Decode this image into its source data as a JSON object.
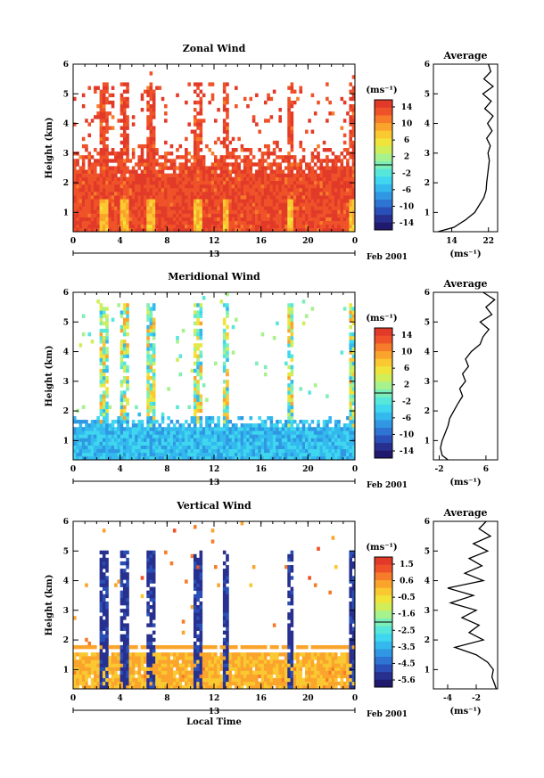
{
  "date_label": "Feb 2001",
  "local_time_label": "Local Time",
  "colors": {
    "palette": [
      "#1f1a6e",
      "#27308f",
      "#2a4fb6",
      "#2e74d2",
      "#2f97e3",
      "#33b9ee",
      "#3fd6ef",
      "#57e6da",
      "#7cefb8",
      "#a6f28c",
      "#cfee5a",
      "#f0e43a",
      "#fac830",
      "#fba42c",
      "#f77c2a",
      "#ef5228",
      "#e23a28"
    ]
  },
  "chart_data": [
    {
      "type": "heatmap",
      "title": "Zonal Wind",
      "ylabel": "Height (km)",
      "x": [
        0,
        24
      ],
      "x_ticks": [
        "0",
        "4",
        "8",
        "12",
        "16",
        "20",
        "0"
      ],
      "y": [
        0.35,
        6
      ],
      "y_ticks": [
        "1",
        "2",
        "3",
        "4",
        "5",
        "6"
      ],
      "day_label": "13",
      "colorbar_unit": "(ms⁻¹)",
      "colorbar_range": [
        -16,
        16
      ],
      "colorbar_ticks": [
        "14",
        "10",
        "6",
        "2",
        "-2",
        "-6",
        "-10",
        "-14"
      ],
      "field_note": "mostly strong positive values (red) up to ~2 km with patchy returns above",
      "profile": {
        "title": "Average",
        "x_ticks": [
          "14",
          "22"
        ],
        "xlim": [
          10,
          24
        ],
        "xlabel": "(ms⁻¹)",
        "y_ticks": [
          "1",
          "2",
          "3",
          "4",
          "5",
          "6"
        ],
        "heights": [
          0.35,
          0.5,
          0.75,
          1.0,
          1.25,
          1.5,
          1.75,
          2.0,
          2.25,
          2.5,
          2.75,
          3.0,
          3.25,
          3.5,
          3.75,
          4.0,
          4.25,
          4.5,
          4.75,
          5.0,
          5.25,
          5.5,
          5.75,
          6.0
        ],
        "values": [
          11,
          14.5,
          17,
          19,
          20,
          21,
          21.5,
          21.6,
          21.8,
          22,
          22.2,
          21.9,
          22.4,
          21.6,
          22.8,
          21.8,
          23,
          21.2,
          22.6,
          20.8,
          23,
          21,
          22.5,
          22
        ]
      }
    },
    {
      "type": "heatmap",
      "title": "Meridional Wind",
      "ylabel": "Height (km)",
      "x": [
        0,
        24
      ],
      "x_ticks": [
        "0",
        "4",
        "8",
        "12",
        "16",
        "20",
        "0"
      ],
      "y": [
        0.35,
        6
      ],
      "y_ticks": [
        "1",
        "2",
        "3",
        "4",
        "5",
        "6"
      ],
      "day_label": "13",
      "colorbar_unit": "(ms⁻¹)",
      "colorbar_range": [
        -16,
        16
      ],
      "colorbar_ticks": [
        "14",
        "10",
        "6",
        "2",
        "-2",
        "-6",
        "-10",
        "-14"
      ],
      "field_note": "weak negative (cyan/blue) values below ~1.5 km, narrow columns of returns above",
      "profile": {
        "title": "Average",
        "x_ticks": [
          "-2",
          "6"
        ],
        "xlim": [
          -3,
          8
        ],
        "xlabel": "(ms⁻¹)",
        "y_ticks": [
          "1",
          "2",
          "3",
          "4",
          "5",
          "6"
        ],
        "heights": [
          0.35,
          0.5,
          0.75,
          1.0,
          1.25,
          1.5,
          1.75,
          2.0,
          2.25,
          2.5,
          2.75,
          3.0,
          3.25,
          3.5,
          3.75,
          4.0,
          4.25,
          4.5,
          4.75,
          5.0,
          5.25,
          5.5,
          5.75,
          6.0
        ],
        "values": [
          -0.5,
          -1.5,
          -1.8,
          -1.5,
          -1.0,
          -0.5,
          -0.2,
          0.5,
          1.2,
          2.0,
          1.5,
          2.5,
          2.0,
          3.0,
          2.5,
          3.5,
          5.0,
          5.5,
          6.5,
          5.0,
          7.0,
          6.0,
          7.5,
          5.5
        ]
      }
    },
    {
      "type": "heatmap",
      "title": "Vertical Wind",
      "ylabel": "Height (km)",
      "x": [
        0,
        24
      ],
      "x_ticks": [
        "0",
        "4",
        "8",
        "12",
        "16",
        "20",
        "0"
      ],
      "y": [
        0.35,
        6
      ],
      "y_ticks": [
        "1",
        "2",
        "3",
        "4",
        "5",
        "6"
      ],
      "day_label": "13",
      "colorbar_unit": "(ms⁻¹)",
      "colorbar_range": [
        -6.0,
        2.0
      ],
      "colorbar_ticks": [
        "1.5",
        "0.6",
        "-0.5",
        "-1.6",
        "-2.5",
        "-3.5",
        "-4.5",
        "-5.6"
      ],
      "field_note": "near-zero (yellow) values below ~1.7 km, strong negative columns near 3, 4, 7, 11 h",
      "profile": {
        "title": "Average",
        "x_ticks": [
          "-4",
          "-2"
        ],
        "xlim": [
          -5,
          -0.5
        ],
        "xlabel": "(ms⁻¹)",
        "y_ticks": [
          "1",
          "2",
          "3",
          "4",
          "5",
          "6"
        ],
        "heights": [
          0.35,
          0.5,
          0.75,
          1.0,
          1.25,
          1.5,
          1.75,
          2.0,
          2.25,
          2.5,
          2.75,
          3.0,
          3.25,
          3.5,
          3.75,
          4.0,
          4.25,
          4.5,
          4.75,
          5.0,
          5.25,
          5.5,
          5.75,
          6.0
        ],
        "values": [
          -0.6,
          -0.7,
          -0.9,
          -0.8,
          -1.2,
          -2.0,
          -3.5,
          -1.5,
          -2.5,
          -1.8,
          -3.0,
          -2.0,
          -3.8,
          -2.2,
          -4.0,
          -1.5,
          -2.8,
          -1.6,
          -2.5,
          -1.2,
          -2.2,
          -1.0,
          -1.8,
          -1.3
        ]
      }
    }
  ]
}
